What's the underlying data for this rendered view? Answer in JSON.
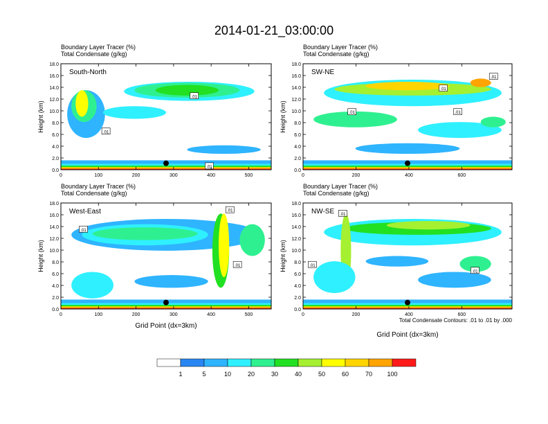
{
  "figure": {
    "title": "2014-01-21_03:00:00",
    "footnote": "Total Condensate Contours: .01 to .01 by .000"
  },
  "colors": {
    "levels": [
      "#ffffff",
      "#2a86f2",
      "#2fb4ff",
      "#2ff0ff",
      "#2ff090",
      "#22e022",
      "#a5f030",
      "#ffff00",
      "#ffd500",
      "#ffa400",
      "#ff6a00",
      "#ff1a1a"
    ],
    "contour": "#000000",
    "marker": "#000000"
  },
  "chart_data": [
    {
      "type": "heatmap",
      "subtitle1": "Boundary Layer Tracer   (%)",
      "subtitle2": "Total Condensate   (g/kg)",
      "panel_label": "South-North",
      "xlabel": "",
      "ylabel": "Height (km)",
      "xlim": [
        0,
        560
      ],
      "ylim": [
        0,
        18
      ],
      "xticks": [
        0,
        100,
        200,
        300,
        400,
        500
      ],
      "yticks": [
        0.0,
        2.0,
        4.0,
        6.0,
        8.0,
        10.0,
        12.0,
        14.0,
        16.0,
        18.0
      ],
      "ytick_labels": [
        "0.0",
        "2.0",
        "4.0",
        "6.0",
        "8.0",
        "10.0",
        "12.0",
        "14.0",
        "16.0",
        "18.0"
      ],
      "contour_labels": [
        {
          "text": ".01",
          "x": 355,
          "y": 12.5
        },
        {
          "text": ".01",
          "x": 120,
          "y": 6.5
        },
        {
          "text": ".01",
          "x": 395,
          "y": 0.6
        }
      ],
      "marker": {
        "x": 280,
        "y": 1.1
      }
    },
    {
      "type": "heatmap",
      "subtitle1": "Boundary Layer Tracer   (%)",
      "subtitle2": "Total Condensate   (g/kg)",
      "panel_label": "SW-NE",
      "xlabel": "",
      "ylabel": "Height (km)",
      "xlim": [
        0,
        790
      ],
      "ylim": [
        0,
        18
      ],
      "xticks": [
        0,
        200,
        400,
        600
      ],
      "yticks": [
        0.0,
        2.0,
        4.0,
        6.0,
        8.0,
        10.0,
        12.0,
        14.0,
        16.0,
        18.0
      ],
      "ytick_labels": [
        "0.0",
        "2.0",
        "4.0",
        "6.0",
        "8.0",
        "10.0",
        "12.0",
        "14.0",
        "16.0",
        "18.0"
      ],
      "contour_labels": [
        {
          "text": ".01",
          "x": 720,
          "y": 15.8
        },
        {
          "text": ".01",
          "x": 530,
          "y": 13.8
        },
        {
          "text": ".01",
          "x": 185,
          "y": 9.8
        },
        {
          "text": ".01",
          "x": 585,
          "y": 9.8
        }
      ],
      "marker": {
        "x": 395,
        "y": 1.1
      }
    },
    {
      "type": "heatmap",
      "subtitle1": "Boundary Layer Tracer   (%)",
      "subtitle2": "Total Condensate   (g/kg)",
      "panel_label": "West-East",
      "xlabel": "Grid Point (dx=3km)",
      "ylabel": "Height (km)",
      "xlim": [
        0,
        560
      ],
      "ylim": [
        0,
        18
      ],
      "xticks": [
        0,
        100,
        200,
        300,
        400,
        500
      ],
      "yticks": [
        0.0,
        2.0,
        4.0,
        6.0,
        8.0,
        10.0,
        12.0,
        14.0,
        16.0,
        18.0
      ],
      "ytick_labels": [
        "0.0",
        "2.0",
        "4.0",
        "6.0",
        "8.0",
        "10.0",
        "12.0",
        "14.0",
        "16.0",
        "18.0"
      ],
      "contour_labels": [
        {
          "text": ".01",
          "x": 450,
          "y": 16.8
        },
        {
          "text": ".01",
          "x": 60,
          "y": 13.5
        },
        {
          "text": ".01",
          "x": 470,
          "y": 7.5
        }
      ],
      "marker": {
        "x": 280,
        "y": 1.1
      }
    },
    {
      "type": "heatmap",
      "subtitle1": "Boundary Layer Tracer   (%)",
      "subtitle2": "Total Condensate   (g/kg)",
      "panel_label": "NW-SE",
      "xlabel": "Grid Point (dx=3km)",
      "ylabel": "Height (km)",
      "xlim": [
        0,
        790
      ],
      "ylim": [
        0,
        18
      ],
      "xticks": [
        0,
        200,
        400,
        600
      ],
      "yticks": [
        0.0,
        2.0,
        4.0,
        6.0,
        8.0,
        10.0,
        12.0,
        14.0,
        16.0,
        18.0
      ],
      "ytick_labels": [
        "0.0",
        "2.0",
        "4.0",
        "6.0",
        "8.0",
        "10.0",
        "12.0",
        "14.0",
        "16.0",
        "18.0"
      ],
      "contour_labels": [
        {
          "text": ".01",
          "x": 150,
          "y": 16.2
        },
        {
          "text": ".01",
          "x": 35,
          "y": 7.5
        },
        {
          "text": ".01",
          "x": 650,
          "y": 6.5
        }
      ],
      "marker": {
        "x": 395,
        "y": 1.1
      }
    }
  ],
  "colorbar": {
    "labels": [
      "1",
      "5",
      "10",
      "20",
      "30",
      "40",
      "50",
      "60",
      "70",
      "100"
    ]
  }
}
